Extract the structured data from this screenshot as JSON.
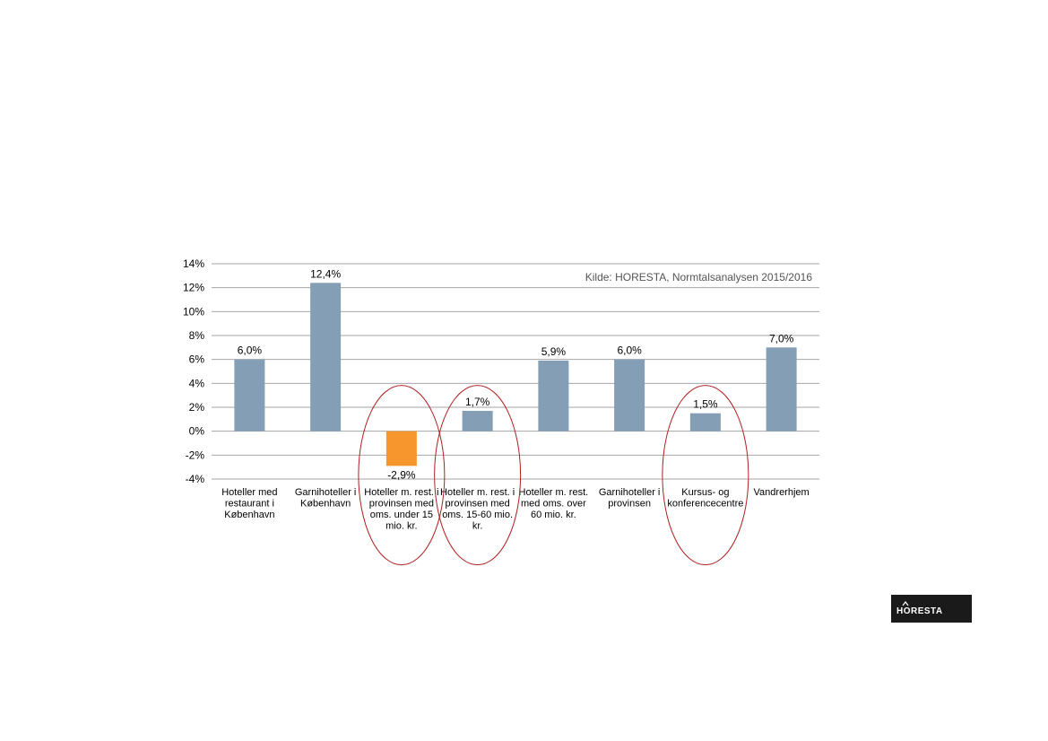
{
  "chart_data": {
    "type": "bar",
    "categories": [
      [
        "Hoteller med",
        "restaurant i",
        "København"
      ],
      [
        "Garnihoteller i",
        "København"
      ],
      [
        "Hoteller m. rest. i",
        "provinsen med",
        "oms. under 15",
        "mio. kr."
      ],
      [
        "Hoteller m. rest. i",
        "provinsen med",
        "oms. 15-60 mio.",
        "kr."
      ],
      [
        "Hoteller m. rest.",
        "med oms. over",
        "60 mio. kr."
      ],
      [
        "Garnihoteller i",
        "provinsen"
      ],
      [
        "Kursus- og",
        "konferencecentre"
      ],
      [
        "Vandrerhjem"
      ]
    ],
    "values": [
      6.0,
      12.4,
      -2.9,
      1.7,
      5.9,
      6.0,
      1.5,
      7.0
    ],
    "data_labels": [
      "6,0%",
      "12,4%",
      "-2,9%",
      "1,7%",
      "5,9%",
      "6,0%",
      "1,5%",
      "7,0%"
    ],
    "y_ticks": [
      14,
      12,
      10,
      8,
      6,
      4,
      2,
      0,
      -2,
      -4
    ],
    "y_tick_labels": [
      "14%",
      "12%",
      "10%",
      "8%",
      "6%",
      "4%",
      "2%",
      "0%",
      "-2%",
      "-4%"
    ],
    "ylim": [
      -4,
      14
    ],
    "grid": true,
    "annotation": "Kilde: HORESTA, Normtalsanalysen 2015/2016",
    "highlighted_categories": [
      2,
      3,
      6
    ],
    "colors": {
      "positive_bar": "#849fb5",
      "negative_bar": "#f7962c",
      "gridline": "#a6a6a6",
      "highlight_ellipse": "#b02020"
    }
  },
  "logo": {
    "text": "HORESTA",
    "background": "#1a1a1a"
  }
}
